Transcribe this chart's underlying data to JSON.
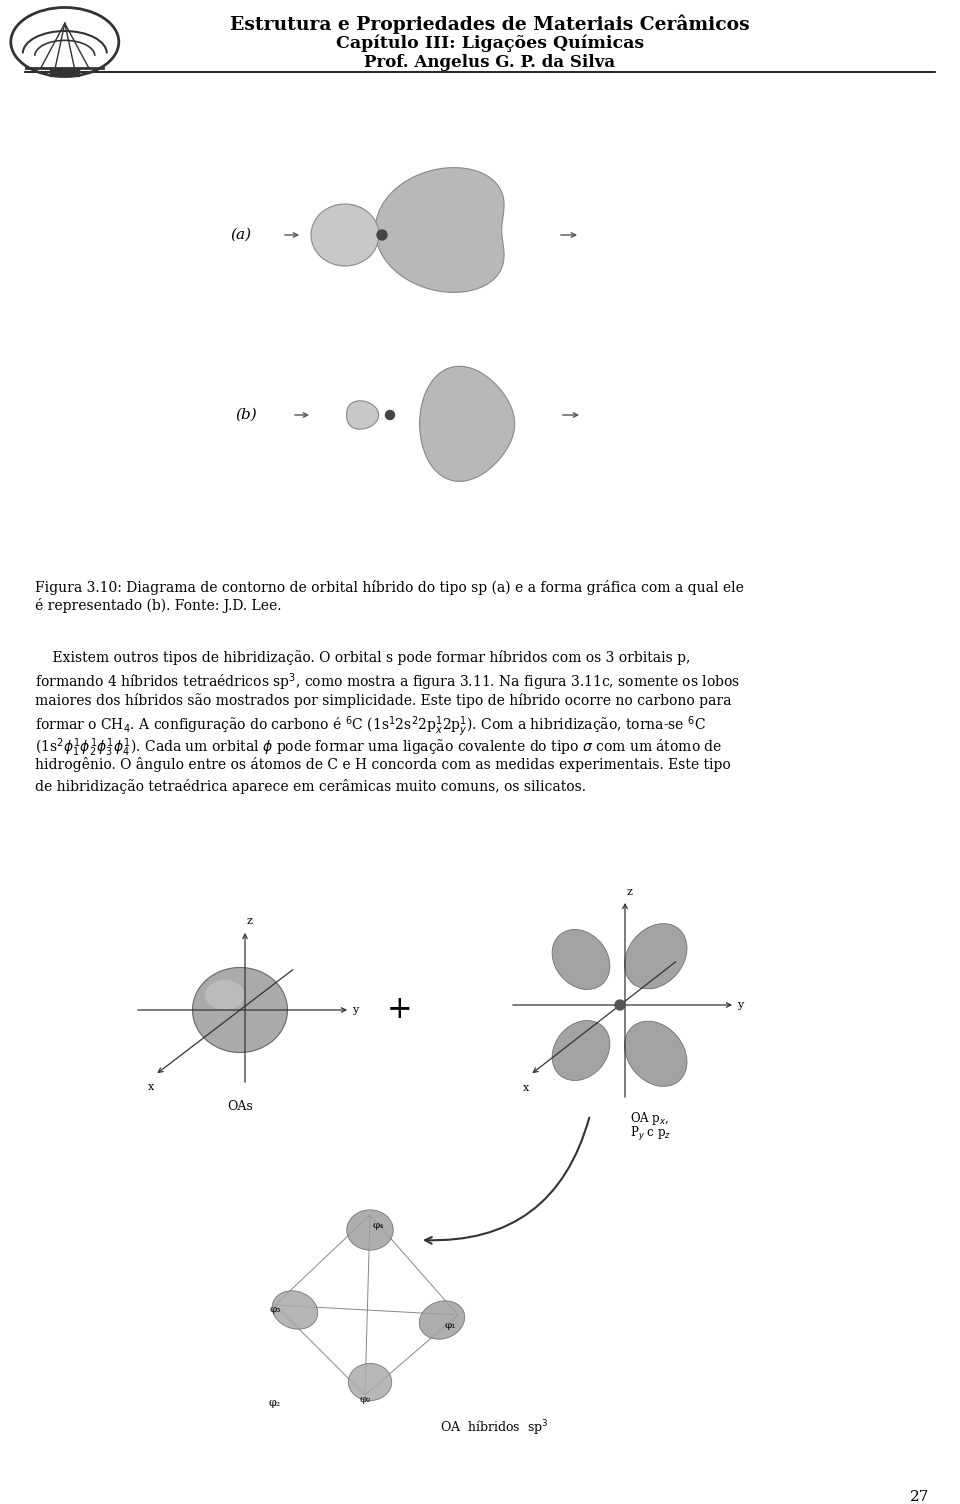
{
  "header_line1": "Estrutura e Propriedades de Materiais Cerâmicos",
  "header_line2": "Capítulo III: Ligações Químicas",
  "header_line3": "Prof. Angelus G. P. da Silva",
  "fig_caption_line1": "Figura 3.10: Diagrama de contorno de orbital híbrido do tipo sp (a) e a forma gráfica com a qual ele",
  "fig_caption_line2": "é representado (b). Fonte: J.D. Lee.",
  "para_line1": "    Existem outros tipos de hibridização. O orbital s pode formar híbridos com os 3 orbitais p,",
  "para_line2a": "formando 4 híbridos tetraédricos sp",
  "para_line2b": ", como mostra a figura 3.11. Na figura 3.11c, somente os lobos",
  "para_line3": "maiores dos híbridos são mostrados por simplicidade. Este tipo de híbrido ocorre no carbono para",
  "para_line4a": "formar o CH",
  "para_line4b": ". A configuração do carbono é ",
  "para_line4c": "C (1s",
  "para_line4d": "2s",
  "para_line4e": "2p",
  "para_line4f": "2p",
  "para_line4g": "). Com a hibridização, torna-se ",
  "para_line4h": "C",
  "para_line5a": "(1s",
  "para_line5b": "φ",
  "para_line5c": "φ",
  "para_line5d": "φ",
  "para_line5e": "φ",
  "para_line5f": "). Cada um orbital φ pode formar uma ligação covalente do tipo σ com um átomo de",
  "para_line6": "hidrogênio. O ângulo entre os átomos de C e H concorda com as medidas experimentais. Este tipo",
  "para_line7": "de hibridização tetraédrica aparece em cerâmicas muito comuns, os silicatos.",
  "label_a": "(a)",
  "label_b": "(b)",
  "label_oas": "OAs",
  "label_oa_p": "OA p",
  "label_py_pz": "P",
  "label_sp3": "OA  híbridos  sp",
  "page_number": "27",
  "bg_color": "#ffffff",
  "text_color": "#1a1a1a",
  "orbital_fill": "#b8b8b8",
  "orbital_edge": "#888888",
  "arrow_color": "#555555"
}
